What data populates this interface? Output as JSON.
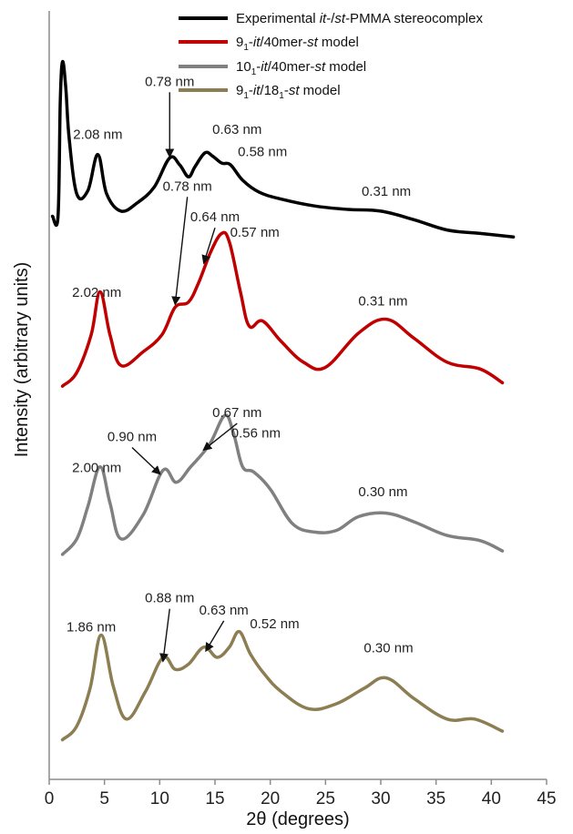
{
  "chart_data": {
    "type": "line",
    "xlabel": "2θ (degrees)",
    "ylabel": "Intensity (arbitrary units)",
    "xlim": [
      0,
      45
    ],
    "x_ticks": [
      "0",
      "5",
      "10",
      "15",
      "20",
      "25",
      "30",
      "35",
      "40",
      "45"
    ],
    "y_ticks_shown": false,
    "legend_position": "top-right",
    "legend": [
      {
        "prefix": "Experimental ",
        "it": "it",
        "mid": "-/",
        "st": "st",
        "suffix": "-PMMA stereocomplex"
      },
      {
        "a": "9",
        "asub": "1",
        "b": "-",
        "bit": "it",
        "c": "/40mer-",
        "cit": "st",
        "d": " model"
      },
      {
        "a": "10",
        "asub": "1",
        "b": "-",
        "bit": "it",
        "c": "/40mer-",
        "cit": "st",
        "d": " model"
      },
      {
        "a": "9",
        "asub": "1",
        "b": "-",
        "bit": "it",
        "c": "/18",
        "csub": "1",
        "e": "-",
        "eit": "st",
        "d": " model"
      }
    ],
    "series": [
      {
        "name": "Experimental it-/st-PMMA stereocomplex",
        "color": "#000000",
        "points": [
          [
            0.3,
            -0.1
          ],
          [
            0.8,
            -0.1
          ],
          [
            1.0,
            6.5
          ],
          [
            1.2,
            8.9
          ],
          [
            1.5,
            7.4
          ],
          [
            1.8,
            4.5
          ],
          [
            2.5,
            1.2
          ],
          [
            3.5,
            1.4
          ],
          [
            4.4,
            3.5
          ],
          [
            5.2,
            1.2
          ],
          [
            6.5,
            0.2
          ],
          [
            8.0,
            0.7
          ],
          [
            9.5,
            1.6
          ],
          [
            10.9,
            3.3
          ],
          [
            11.8,
            2.9
          ],
          [
            12.6,
            2.2
          ],
          [
            13.2,
            2.8
          ],
          [
            14.1,
            3.6
          ],
          [
            14.8,
            3.4
          ],
          [
            15.6,
            3.0
          ],
          [
            16.4,
            2.9
          ],
          [
            17.5,
            2.0
          ],
          [
            19.0,
            1.3
          ],
          [
            21.0,
            0.9
          ],
          [
            24.0,
            0.5
          ],
          [
            27.0,
            0.3
          ],
          [
            30.0,
            0.2
          ],
          [
            33.0,
            -0.3
          ],
          [
            36.0,
            -0.9
          ],
          [
            39.0,
            -1.1
          ],
          [
            42.0,
            -1.3
          ]
        ]
      },
      {
        "name": "9₁-it/40mer-st model",
        "color": "#c00000",
        "points": [
          [
            1.2,
            -10.0
          ],
          [
            2.5,
            -9.2
          ],
          [
            3.8,
            -7.0
          ],
          [
            4.6,
            -4.5
          ],
          [
            5.5,
            -7.0
          ],
          [
            6.5,
            -8.8
          ],
          [
            8.5,
            -8.0
          ],
          [
            10.2,
            -7.0
          ],
          [
            11.4,
            -5.4
          ],
          [
            12.6,
            -5.1
          ],
          [
            13.5,
            -4.0
          ],
          [
            14.6,
            -2.2
          ],
          [
            15.6,
            -1.1
          ],
          [
            16.3,
            -1.6
          ],
          [
            17.3,
            -4.5
          ],
          [
            18.1,
            -6.5
          ],
          [
            19.3,
            -6.2
          ],
          [
            21.0,
            -7.4
          ],
          [
            23.0,
            -8.6
          ],
          [
            25.0,
            -8.9
          ],
          [
            28.0,
            -6.9
          ],
          [
            30.5,
            -6.1
          ],
          [
            33.0,
            -7.2
          ],
          [
            36.0,
            -8.6
          ],
          [
            39.0,
            -9.0
          ],
          [
            41.0,
            -9.8
          ]
        ]
      },
      {
        "name": "10₁-it/40mer-st model",
        "color": "#808080",
        "points": [
          [
            1.2,
            -19.8
          ],
          [
            2.5,
            -18.9
          ],
          [
            3.5,
            -17.0
          ],
          [
            4.6,
            -14.7
          ],
          [
            5.5,
            -16.8
          ],
          [
            6.5,
            -18.9
          ],
          [
            8.5,
            -17.5
          ],
          [
            10.3,
            -14.9
          ],
          [
            11.5,
            -15.6
          ],
          [
            12.8,
            -14.7
          ],
          [
            14.5,
            -13.4
          ],
          [
            15.9,
            -11.7
          ],
          [
            16.7,
            -12.8
          ],
          [
            17.5,
            -14.7
          ],
          [
            18.5,
            -15.0
          ],
          [
            20.0,
            -16.0
          ],
          [
            22.0,
            -18.0
          ],
          [
            24.0,
            -18.5
          ],
          [
            26.0,
            -18.4
          ],
          [
            28.0,
            -17.6
          ],
          [
            30.5,
            -17.4
          ],
          [
            33.0,
            -17.9
          ],
          [
            36.0,
            -18.7
          ],
          [
            39.0,
            -19.0
          ],
          [
            41.0,
            -19.6
          ]
        ]
      },
      {
        "name": "9₁-it/18₁-st model",
        "color": "#8c7e52",
        "points": [
          [
            1.2,
            -30.6
          ],
          [
            2.5,
            -29.8
          ],
          [
            3.7,
            -27.6
          ],
          [
            4.7,
            -24.5
          ],
          [
            5.8,
            -27.5
          ],
          [
            7.0,
            -29.4
          ],
          [
            8.7,
            -27.8
          ],
          [
            10.3,
            -25.8
          ],
          [
            11.4,
            -26.5
          ],
          [
            12.6,
            -26.2
          ],
          [
            14.0,
            -25.2
          ],
          [
            15.2,
            -25.8
          ],
          [
            16.3,
            -25.2
          ],
          [
            17.2,
            -24.3
          ],
          [
            18.2,
            -25.6
          ],
          [
            19.5,
            -26.8
          ],
          [
            21.0,
            -27.8
          ],
          [
            23.5,
            -28.8
          ],
          [
            26.0,
            -28.5
          ],
          [
            28.5,
            -27.6
          ],
          [
            30.5,
            -27.0
          ],
          [
            33.0,
            -28.2
          ],
          [
            36.0,
            -29.4
          ],
          [
            38.5,
            -29.4
          ],
          [
            41.0,
            -30.1
          ]
        ]
      }
    ],
    "annotations": [
      {
        "text": "2.08 nm",
        "x": 4.4,
        "y": 4.4
      },
      {
        "text": "0.78 nm",
        "x": 10.9,
        "y": 7.5,
        "arrow_to": [
          10.9,
          3.4
        ]
      },
      {
        "text": "0.63 nm",
        "x": 17.0,
        "y": 4.7
      },
      {
        "text": "0.58 nm",
        "x": 19.3,
        "y": 3.4
      },
      {
        "text": "0.31 nm",
        "x": 30.5,
        "y": 1.1
      },
      {
        "text": "0.78 nm",
        "x": 12.5,
        "y": 1.4,
        "arrow_to": [
          11.4,
          -5.2
        ]
      },
      {
        "text": "0.64 nm",
        "x": 15.0,
        "y": -0.4,
        "arrow_to": [
          14.0,
          -2.8
        ]
      },
      {
        "text": "0.57 nm",
        "x": 18.6,
        "y": -1.3
      },
      {
        "text": "2.02 nm",
        "x": 4.3,
        "y": -4.8
      },
      {
        "text": "0.31 nm",
        "x": 30.2,
        "y": -5.3
      },
      {
        "text": "0.67 nm",
        "x": 17.0,
        "y": -11.8,
        "arrow_to": [
          14.0,
          -13.7
        ]
      },
      {
        "text": "0.90 nm",
        "x": 7.5,
        "y": -13.2,
        "arrow_to": [
          10.0,
          -15.1
        ]
      },
      {
        "text": "0.56 nm",
        "x": 18.7,
        "y": -13.0
      },
      {
        "text": "2.00 nm",
        "x": 4.3,
        "y": -15.0
      },
      {
        "text": "0.30 nm",
        "x": 30.2,
        "y": -16.4
      },
      {
        "text": "0.88 nm",
        "x": 10.9,
        "y": -22.6,
        "arrow_to": [
          10.3,
          -26.0
        ]
      },
      {
        "text": "0.63 nm",
        "x": 15.8,
        "y": -23.3,
        "arrow_to": [
          14.2,
          -25.4
        ]
      },
      {
        "text": "0.52 nm",
        "x": 20.4,
        "y": -24.1
      },
      {
        "text": "1.86 nm",
        "x": 3.8,
        "y": -24.3
      },
      {
        "text": "0.30 nm",
        "x": 30.7,
        "y": -25.5
      }
    ]
  }
}
